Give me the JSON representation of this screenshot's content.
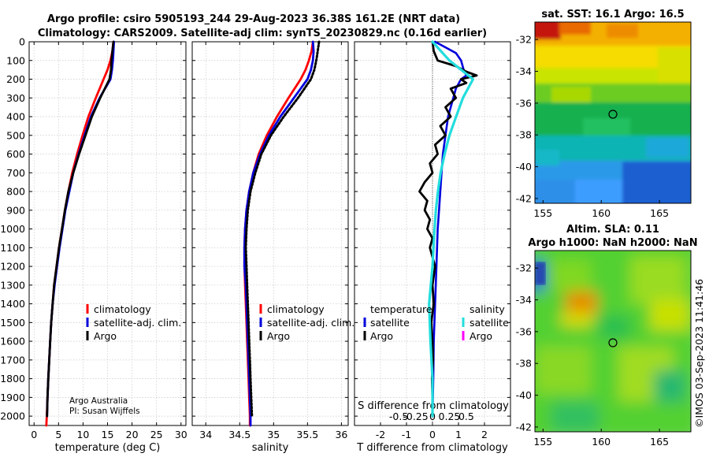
{
  "figure": {
    "title_line1": "Argo profile: csiro 5905193_244 29-Aug-2023 36.38S 161.2E (NRT data)",
    "title_line2": "Climatology: CARS2009. Satellite-adj clim: synTS_20230829.nc (0.16d earlier)",
    "credit_line1": "Argo Australia",
    "credit_line2": "PI: Susan Wijffels",
    "timestamp": "©IMOS 03-Sep-2023 11:41:46",
    "colors": {
      "climatology": "#ff0000",
      "satellite": "#0000dd",
      "argo": "#000000",
      "sat_cyan": "#22dddd",
      "argo_magenta": "#ff00ff"
    }
  },
  "chart_data": [
    {
      "type": "line",
      "name": "temperature-panel",
      "xlabel": "temperature (deg C)",
      "ylabel": "",
      "xlim": [
        -1,
        31
      ],
      "ylim": [
        2050,
        0
      ],
      "xticks": [
        0,
        5,
        10,
        15,
        20,
        25,
        30
      ],
      "xtick_labels": [
        "0",
        "5",
        "10",
        "15",
        "20",
        "25",
        "30"
      ],
      "yticks": [
        0,
        100,
        200,
        300,
        400,
        500,
        600,
        700,
        800,
        900,
        1000,
        1100,
        1200,
        1300,
        1400,
        1500,
        1600,
        1700,
        1800,
        1900,
        2000
      ],
      "ytick_labels": [
        "0",
        "100",
        "200",
        "300",
        "400",
        "500",
        "600",
        "700",
        "800",
        "900",
        "1000",
        "1100",
        "1200",
        "1300",
        "1400",
        "1500",
        "1600",
        "1700",
        "1800",
        "1900",
        "2000"
      ],
      "series": [
        {
          "name": "climatology",
          "style": "solid",
          "depth": [
            0,
            50,
            100,
            150,
            200,
            300,
            400,
            500,
            600,
            700,
            800,
            900,
            1000,
            1100,
            1200,
            1300,
            1400,
            1500,
            1600,
            1700,
            1800,
            1900,
            2000,
            2050
          ],
          "values": [
            16.2,
            16.0,
            15.6,
            15.0,
            14.2,
            12.6,
            11.1,
            9.9,
            8.8,
            7.8,
            7.0,
            6.3,
            5.7,
            5.1,
            4.6,
            4.1,
            3.8,
            3.5,
            3.3,
            3.1,
            2.9,
            2.75,
            2.6,
            2.5
          ]
        },
        {
          "name": "satellite-adj. clim.",
          "style": "solid",
          "depth": [
            0,
            50,
            100,
            150,
            200,
            300,
            400,
            500,
            600,
            700,
            800,
            900,
            1000,
            1100,
            1200,
            1300,
            1400,
            1500,
            1600,
            1700,
            1800,
            1900,
            2000
          ],
          "values": [
            16.3,
            16.2,
            16.1,
            15.9,
            15.6,
            13.4,
            11.6,
            10.3,
            9.1,
            8.0,
            7.2,
            6.4,
            5.8,
            5.2,
            4.7,
            4.2,
            3.8,
            3.5,
            3.3,
            3.1,
            2.9,
            2.75,
            2.65
          ]
        },
        {
          "name": "Argo",
          "style": "solid",
          "depth": [
            0,
            50,
            100,
            150,
            200,
            300,
            400,
            500,
            600,
            700,
            800,
            900,
            1000,
            1100,
            1200,
            1300,
            1400,
            1500,
            1600,
            1700,
            1800,
            1900,
            2000
          ],
          "values": [
            16.2,
            16.0,
            15.8,
            15.7,
            15.4,
            13.5,
            11.8,
            10.5,
            9.2,
            8.0,
            7.0,
            6.3,
            5.7,
            5.1,
            4.6,
            4.1,
            3.8,
            3.5,
            3.3,
            3.1,
            2.9,
            2.75,
            2.65
          ]
        }
      ],
      "legend": {
        "position": "bottom-right",
        "entries": [
          "climatology",
          "satellite-adj. clim.",
          "Argo"
        ]
      }
    },
    {
      "type": "line",
      "name": "salinity-panel",
      "xlabel": "salinity",
      "ylabel": "",
      "xlim": [
        33.8,
        36.1
      ],
      "ylim": [
        2050,
        0
      ],
      "xticks": [
        34,
        34.5,
        35,
        35.5,
        36
      ],
      "xtick_labels": [
        "34",
        "34.5",
        "35",
        "35.5",
        "36"
      ],
      "series": [
        {
          "name": "climatology",
          "style": "solid",
          "depth": [
            0,
            50,
            100,
            150,
            200,
            300,
            400,
            500,
            600,
            700,
            800,
            900,
            1000,
            1100,
            1200,
            1300,
            1400,
            1500,
            1600,
            1700,
            1800,
            1900,
            2000,
            2050
          ],
          "values": [
            35.58,
            35.56,
            35.52,
            35.47,
            35.4,
            35.22,
            35.05,
            34.9,
            34.78,
            34.7,
            34.64,
            34.6,
            34.58,
            34.57,
            34.57,
            34.58,
            34.59,
            34.6,
            34.61,
            34.62,
            34.63,
            34.64,
            34.65,
            34.65
          ]
        },
        {
          "name": "satellite-adj. clim.",
          "style": "solid",
          "depth": [
            0,
            50,
            100,
            150,
            200,
            300,
            400,
            500,
            600,
            700,
            800,
            900,
            1000,
            1100,
            1200,
            1300,
            1400,
            1500,
            1600,
            1700,
            1800,
            1900,
            2000,
            2050
          ],
          "values": [
            35.58,
            35.59,
            35.58,
            35.55,
            35.5,
            35.3,
            35.1,
            34.93,
            34.8,
            34.7,
            34.64,
            34.6,
            34.58,
            34.57,
            34.57,
            34.59,
            34.6,
            34.61,
            34.62,
            34.63,
            34.64,
            34.65,
            34.66,
            34.66
          ]
        },
        {
          "name": "Argo",
          "style": "dotted",
          "depth": [
            0,
            50,
            100,
            150,
            200,
            300,
            400,
            500,
            600,
            700,
            800,
            900,
            1000,
            1100,
            1200,
            1300,
            1400,
            1500,
            1600,
            1700,
            1800,
            1900,
            2000
          ],
          "values": [
            35.67,
            35.65,
            35.63,
            35.6,
            35.55,
            35.36,
            35.15,
            34.96,
            34.82,
            34.73,
            34.66,
            34.62,
            34.6,
            34.59,
            34.6,
            34.61,
            34.62,
            34.63,
            34.64,
            34.65,
            34.66,
            34.67,
            34.68
          ]
        }
      ],
      "legend": {
        "position": "bottom-right",
        "entries": [
          "climatology",
          "satellite-adj. clim.",
          "Argo"
        ]
      }
    },
    {
      "type": "line",
      "name": "difference-panel",
      "xlabel": "T difference from climatology",
      "xlabel2": "S difference from climatology",
      "xlim": [
        -3,
        3
      ],
      "ylim": [
        2050,
        0
      ],
      "xticks": [
        -2,
        -1,
        0,
        1,
        2
      ],
      "xtick_labels": [
        "-2",
        "-1",
        "0",
        "1",
        "2"
      ],
      "sticks": [
        -0.5,
        -0.25,
        0,
        0.25,
        0.5
      ],
      "stick_labels": [
        "-0.5",
        "-0.25",
        "0",
        "0.25",
        "0.5"
      ],
      "series": [
        {
          "name": "temperature satellite",
          "style": "solid",
          "depth": [
            0,
            30,
            60,
            100,
            150,
            180,
            200,
            250,
            300,
            400,
            500,
            600,
            700,
            800,
            900,
            1000,
            1200,
            1400,
            1600,
            1800,
            2000
          ],
          "values": [
            0.1,
            0.5,
            0.9,
            1.1,
            1.2,
            1.3,
            1.1,
            0.9,
            0.8,
            0.6,
            0.5,
            0.4,
            0.35,
            0.3,
            0.25,
            0.2,
            0.15,
            0.1,
            0.05,
            0.03,
            0.0
          ]
        },
        {
          "name": "temperature Argo",
          "style": "solid",
          "depth": [
            0,
            50,
            100,
            130,
            160,
            180,
            200,
            220,
            250,
            300,
            350,
            400,
            450,
            500,
            550,
            600,
            650,
            700,
            750,
            800,
            850,
            900,
            950,
            1000,
            1050,
            1100,
            1200,
            1300,
            1400,
            1500,
            1600,
            1700,
            1800,
            1900,
            2000
          ],
          "values": [
            0.0,
            0.05,
            0.2,
            0.9,
            1.3,
            1.7,
            1.1,
            1.3,
            0.7,
            0.9,
            0.5,
            0.7,
            0.3,
            0.5,
            0.1,
            0.2,
            -0.1,
            0.0,
            -0.3,
            -0.5,
            -0.2,
            -0.3,
            -0.1,
            -0.2,
            0.0,
            -0.1,
            0.1,
            0.0,
            0.05,
            -0.05,
            0.0,
            0.02,
            -0.02,
            0.0,
            0.0
          ]
        },
        {
          "name": "salinity satellite",
          "style": "solid",
          "depth": [
            0,
            100,
            200,
            300,
            400,
            500,
            600,
            700,
            800,
            900,
            1000,
            1200,
            1400,
            1600,
            1800,
            2000
          ],
          "values": [
            0.0,
            0.25,
            0.6,
            0.45,
            0.35,
            0.25,
            0.18,
            0.12,
            0.08,
            0.05,
            0.03,
            0.0,
            -0.05,
            -0.03,
            0.0,
            0.0
          ]
        },
        {
          "name": "salinity Argo",
          "style": "solid",
          "depth": [],
          "values": []
        }
      ],
      "legend_left": {
        "title": "temperature",
        "entries": [
          "satellite",
          "Argo"
        ]
      },
      "legend_right": {
        "title": "salinity",
        "entries": [
          "satellite",
          "Argo"
        ]
      }
    }
  ],
  "maps": [
    {
      "name": "sst-map",
      "title": "sat. SST: 16.1 Argo: 16.5",
      "xticks": [
        155,
        160,
        165
      ],
      "yticks": [
        -32,
        -34,
        -36,
        -38,
        -40,
        -42
      ],
      "profile_lon": 161.2,
      "profile_lat": -36.38
    },
    {
      "name": "sla-map",
      "title_line1": "Altim. SLA: 0.11",
      "title_line2": "Argo h1000: NaN h2000: NaN",
      "xticks": [
        155,
        160,
        165
      ],
      "yticks": [
        -32,
        -34,
        -36,
        -38,
        -40,
        -42
      ],
      "profile_lon": 161.2,
      "profile_lat": -36.38
    }
  ]
}
